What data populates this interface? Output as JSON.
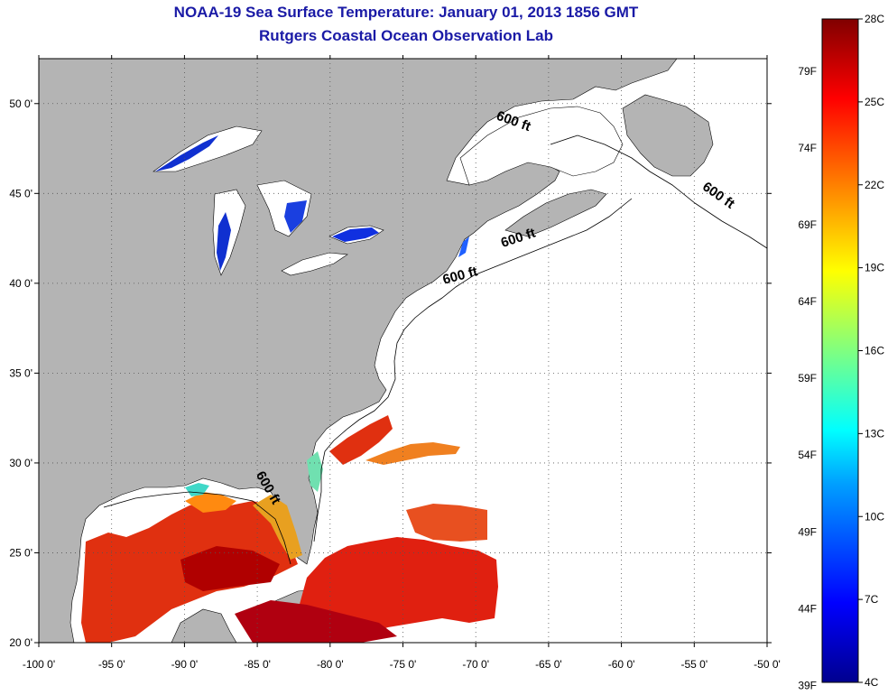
{
  "header": {
    "title": "NOAA-19 Sea Surface Temperature:  January 01, 2013 1856 GMT",
    "subtitle": "Rutgers Coastal Ocean Observation Lab"
  },
  "map": {
    "lon_range": [
      -100,
      -50
    ],
    "lat_range": [
      20,
      52.5
    ],
    "lon_ticks": [
      {
        "lon": -100,
        "label": "-100 0'"
      },
      {
        "lon": -95,
        "label": "-95 0'"
      },
      {
        "lon": -90,
        "label": "-90 0'"
      },
      {
        "lon": -85,
        "label": "-85 0'"
      },
      {
        "lon": -80,
        "label": "-80 0'"
      },
      {
        "lon": -75,
        "label": "-75 0'"
      },
      {
        "lon": -70,
        "label": "-70 0'"
      },
      {
        "lon": -65,
        "label": "-65 0'"
      },
      {
        "lon": -60,
        "label": "-60 0'"
      },
      {
        "lon": -55,
        "label": "-55 0'"
      },
      {
        "lon": -50,
        "label": "-50 0'"
      }
    ],
    "lat_ticks": [
      {
        "lat": 50,
        "label": "50 0'"
      },
      {
        "lat": 45,
        "label": "45 0'"
      },
      {
        "lat": 40,
        "label": "40 0'"
      },
      {
        "lat": 35,
        "label": "35 0'"
      },
      {
        "lat": 30,
        "label": "30 0'"
      },
      {
        "lat": 25,
        "label": "25 0'"
      },
      {
        "lat": 20,
        "label": "20 0'"
      }
    ],
    "isobath_label": "600 ft",
    "isobath_labels": [
      {
        "lon": -67.5,
        "lat": 48.8
      },
      {
        "lon": -53.5,
        "lat": 44.7
      },
      {
        "lon": -67.0,
        "lat": 42.3
      },
      {
        "lon": -71.0,
        "lat": 40.2
      },
      {
        "lon": -84.5,
        "lat": 28.5
      }
    ],
    "colors": {
      "land": "#b4b4b4",
      "water": "#ffffff",
      "grid": "#555555",
      "coastline": "#000000"
    }
  },
  "colorbar": {
    "range_c": [
      4,
      28
    ],
    "celsius_labels": [
      {
        "value": 28,
        "label": "28C"
      },
      {
        "value": 25,
        "label": "25C"
      },
      {
        "value": 22,
        "label": "22C"
      },
      {
        "value": 19,
        "label": "19C"
      },
      {
        "value": 16,
        "label": "16C"
      },
      {
        "value": 13,
        "label": "13C"
      },
      {
        "value": 10,
        "label": "10C"
      },
      {
        "value": 7,
        "label": "7C"
      },
      {
        "value": 4,
        "label": "4C"
      }
    ],
    "fahrenheit_labels": [
      {
        "value": 79,
        "label": "79F"
      },
      {
        "value": 74,
        "label": "74F"
      },
      {
        "value": 69,
        "label": "69F"
      },
      {
        "value": 64,
        "label": "64F"
      },
      {
        "value": 59,
        "label": "59F"
      },
      {
        "value": 54,
        "label": "54F"
      },
      {
        "value": 49,
        "label": "49F"
      },
      {
        "value": 44,
        "label": "44F"
      },
      {
        "value": 39,
        "label": "39F"
      }
    ]
  }
}
